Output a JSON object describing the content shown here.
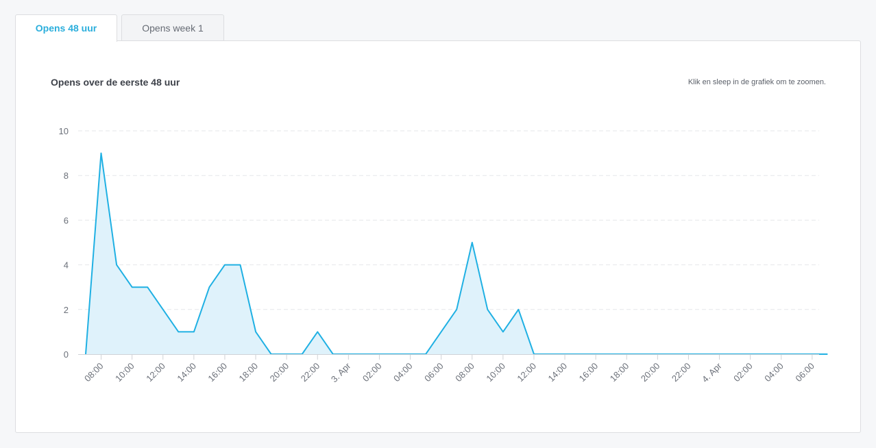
{
  "tabs": [
    {
      "label": "Opens 48 uur",
      "active": true
    },
    {
      "label": "Opens week 1",
      "active": false
    }
  ],
  "chart_header": {
    "title": "Opens over de eerste 48 uur",
    "hint": "Klik en sleep in de grafiek om te zoomen."
  },
  "colors": {
    "accent": "#2aaedc",
    "line": "#1fb0e3",
    "area": "#dff2fb",
    "grid": "#e6e7ea"
  },
  "chart_data": {
    "type": "area",
    "title": "Opens over de eerste 48 uur",
    "xlabel": "",
    "ylabel": "",
    "ylim": [
      0,
      10
    ],
    "yticks": [
      0,
      2,
      4,
      6,
      8,
      10
    ],
    "grid": true,
    "xtick_labels": [
      "08:00",
      "10:00",
      "12:00",
      "14:00",
      "16:00",
      "18:00",
      "20:00",
      "22:00",
      "3. Apr",
      "02:00",
      "04:00",
      "06:00",
      "08:00",
      "10:00",
      "12:00",
      "14:00",
      "16:00",
      "18:00",
      "20:00",
      "22:00",
      "4. Apr",
      "02:00",
      "04:00",
      "06:00"
    ],
    "series": [
      {
        "values": [
          0,
          9,
          4,
          3,
          3,
          2,
          1,
          1,
          3,
          4,
          4,
          1,
          0,
          0,
          0,
          1,
          0,
          0,
          0,
          0,
          0,
          0,
          0,
          1,
          2,
          5,
          2,
          1,
          2,
          0,
          0,
          0,
          0,
          0,
          0,
          0,
          0,
          0,
          0,
          0,
          0,
          0,
          0,
          0,
          0,
          0,
          0,
          0,
          0
        ]
      }
    ]
  }
}
